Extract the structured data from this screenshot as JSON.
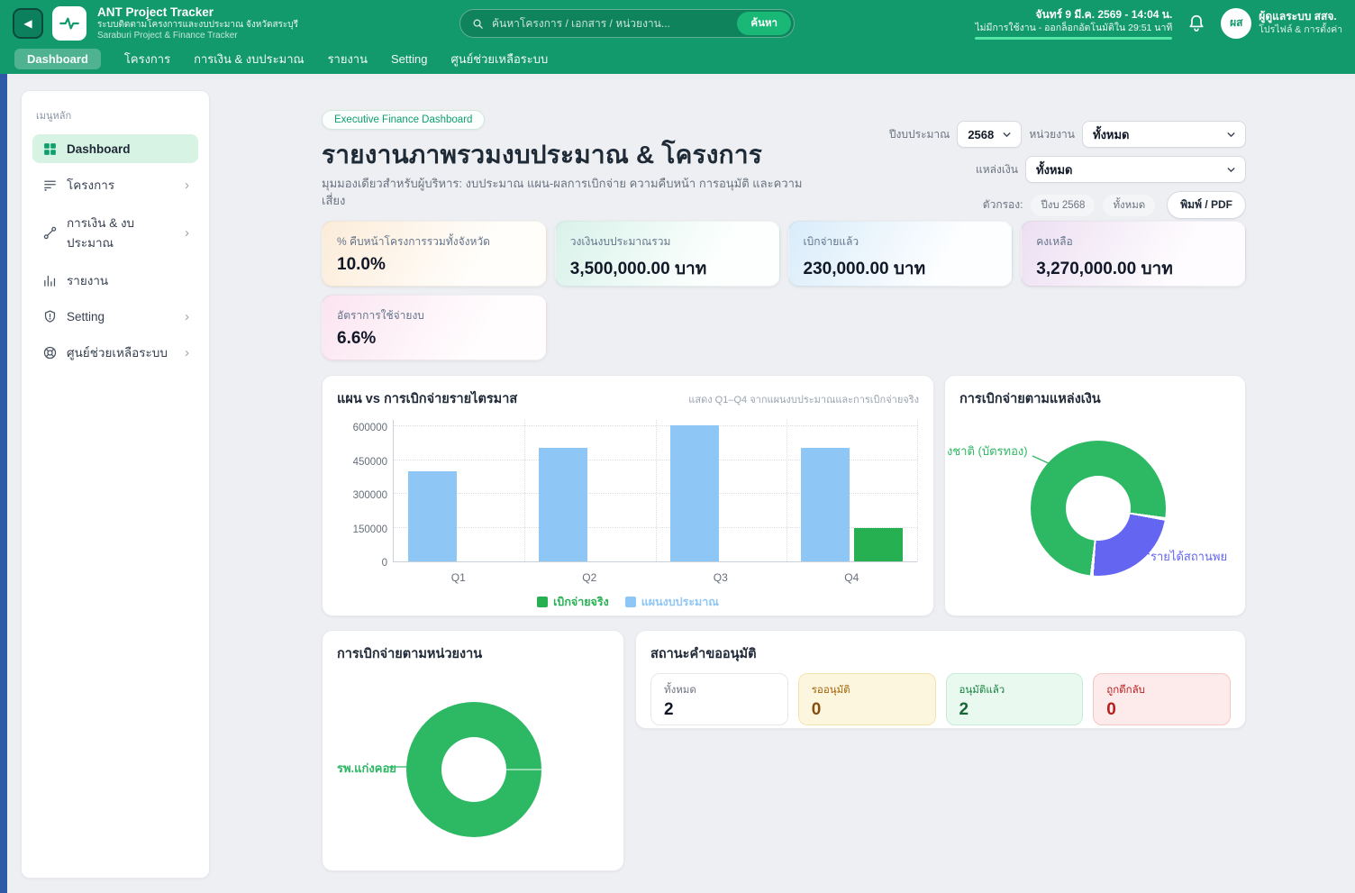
{
  "header": {
    "app_title": "ANT Project Tracker",
    "app_subtitle_th": "ระบบติดตามโครงการและงบประมาณ จังหวัดสระบุรี",
    "app_subtitle_en": "Saraburi Project & Finance Tracker",
    "search": {
      "placeholder": "ค้นหาโครงการ / เอกสาร / หน่วยงาน...",
      "button_label": "ค้นหา"
    },
    "datetime_text": "จันทร์ 9 มี.ค. 2569 - 14:04 น.",
    "session_text": "ไม่มีการใช้งาน - ออกล็อกอัตโนมัติใน 29:51 นาที",
    "user": {
      "avatar_initials": "ผส",
      "name": "ผู้ดูแลระบบ สสจ.",
      "subtitle": "โปรไฟล์ & การตั้งค่า"
    }
  },
  "nav": {
    "tabs": [
      {
        "id": "dashboard",
        "label": "Dashboard",
        "active": true
      },
      {
        "id": "projects",
        "label": "โครงการ",
        "active": false
      },
      {
        "id": "finance",
        "label": "การเงิน & งบประมาณ",
        "active": false
      },
      {
        "id": "reports",
        "label": "รายงาน",
        "active": false
      },
      {
        "id": "setting",
        "label": "Setting",
        "active": false
      },
      {
        "id": "help-center",
        "label": "ศูนย์ช่วยเหลือระบบ",
        "active": false
      }
    ]
  },
  "sidebar": {
    "section_label": "เมนูหลัก",
    "items": [
      {
        "id": "dashboard",
        "label": "Dashboard",
        "icon": "dashboard-grid-icon",
        "active": true,
        "expandable": false
      },
      {
        "id": "projects",
        "label": "โครงการ",
        "icon": "list-icon",
        "active": false,
        "expandable": true
      },
      {
        "id": "finance",
        "label": "การเงิน & งบประมาณ",
        "icon": "link-nodes-icon",
        "active": false,
        "expandable": true
      },
      {
        "id": "reports",
        "label": "รายงาน",
        "icon": "bar-chart-icon",
        "active": false,
        "expandable": false
      },
      {
        "id": "setting",
        "label": "Setting",
        "icon": "shield-icon",
        "active": false,
        "expandable": true
      },
      {
        "id": "help-center",
        "label": "ศูนย์ช่วยเหลือระบบ",
        "icon": "help-ring-icon",
        "active": false,
        "expandable": true
      }
    ]
  },
  "page": {
    "badge": "Executive Finance Dashboard",
    "title": "รายงานภาพรวมงบประมาณ & โครงการ",
    "subtitle": "มุมมองเดียวสำหรับผู้บริหาร: งบประมาณ แผน-ผลการเบิกจ่าย ความคืบหน้า การอนุมัติ และความเสี่ยง",
    "filters": {
      "year_label": "ปีงบประมาณ",
      "year_value": "2568",
      "agency_label": "หน่วยงาน",
      "agency_value": "ทั้งหมด",
      "source_label": "แหล่งเงิน",
      "source_value": "ทั้งหมด",
      "applied_label": "ตัวกรอง:",
      "chips": [
        "ปีงบ 2568",
        "ทั้งหมด"
      ],
      "print_button": "พิมพ์ / PDF"
    },
    "kpis": [
      {
        "label": "% คืบหน้าโครงการรวมทั้งจังหวัด",
        "value": "10.0%",
        "theme": "orange"
      },
      {
        "label": "วงเงินงบประมาณรวม",
        "value": "3,500,000.00 บาท",
        "theme": "green"
      },
      {
        "label": "เบิกจ่ายแล้ว",
        "value": "230,000.00 บาท",
        "theme": "blue"
      },
      {
        "label": "คงเหลือ",
        "value": "3,270,000.00 บาท",
        "theme": "purple"
      },
      {
        "label": "อัตราการใช้จ่ายงบ",
        "value": "6.6%",
        "theme": "pink"
      }
    ],
    "approval": {
      "title": "สถานะคำขออนุมัติ",
      "stats": [
        {
          "label": "ทั้งหมด",
          "value": "2",
          "theme": "plain"
        },
        {
          "label": "รออนุมัติ",
          "value": "0",
          "theme": "yellow"
        },
        {
          "label": "อนุมัติแล้ว",
          "value": "2",
          "theme": "green"
        },
        {
          "label": "ถูกตีกลับ",
          "value": "0",
          "theme": "red"
        }
      ]
    }
  },
  "chart_data": [
    {
      "type": "bar",
      "title": "แผน vs การเบิกจ่ายรายไตรมาส",
      "subtitle": "แสดง Q1–Q4 จากแผนงบประมาณและการเบิกจ่ายจริง",
      "categories": [
        "Q1",
        "Q2",
        "Q3",
        "Q4"
      ],
      "series": [
        {
          "name": "เบิกจ่ายจริง",
          "color": "#27b052",
          "values": [
            0,
            0,
            0,
            150000
          ]
        },
        {
          "name": "แผนงบประมาณ",
          "color": "#8ec7f5",
          "values": [
            400000,
            505000,
            605000,
            505000
          ]
        }
      ],
      "ylim": [
        0,
        600000
      ],
      "yticks": [
        0,
        150000,
        300000,
        450000,
        600000
      ],
      "grid": true,
      "legend_position": "bottom"
    },
    {
      "type": "pie",
      "title": "การเบิกจ่ายตามแหล่งเงิน",
      "slices": [
        {
          "label": "งชาติ (บัตรทอง)",
          "color": "#2db863",
          "pct": 76
        },
        {
          "label": "รายได้สถานพย",
          "color": "#6466f1",
          "pct": 24
        }
      ]
    },
    {
      "type": "pie",
      "title": "การเบิกจ่ายตามหน่วยงาน",
      "slices": [
        {
          "label": "รพ.แก่งคอย",
          "color": "#2db863",
          "pct": 100
        }
      ]
    }
  ],
  "colors": {
    "brand_green": "#12996c",
    "accent_green": "#1ab877",
    "chart_green": "#27b052",
    "chart_blue": "#8ec7f5",
    "chart_indigo": "#6466f1",
    "left_strip_blue": "#2f5aa8",
    "session_bar_green": "#53e6a4"
  }
}
